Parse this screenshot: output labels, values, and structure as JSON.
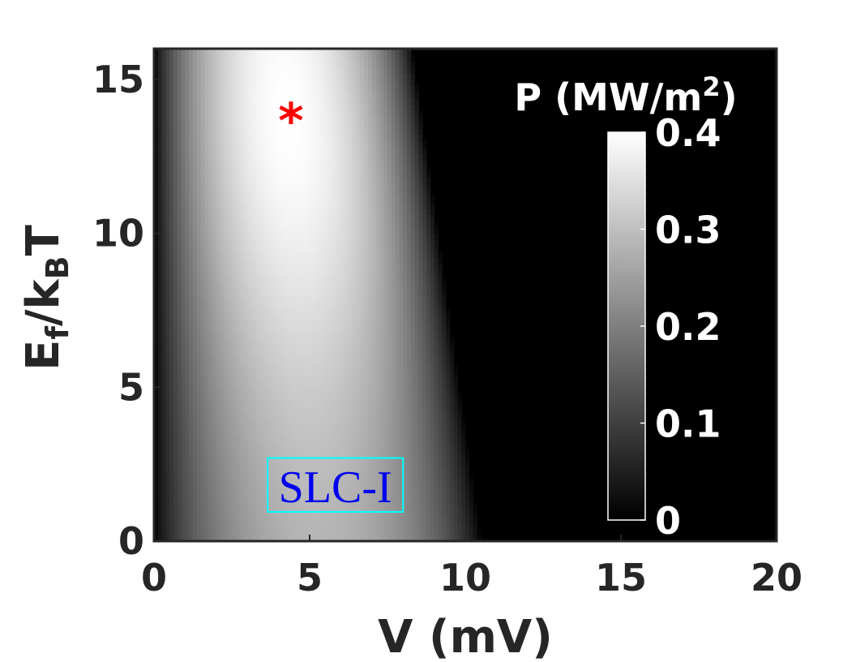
{
  "chart_data": {
    "type": "heatmap",
    "x_var": "V",
    "x_unit": "mV",
    "y_var_base": "E",
    "y_var_sub": "f",
    "y_var_mid": "/k",
    "y_var_sub2": "B",
    "y_var_tail": "T",
    "xlim": [
      0,
      20
    ],
    "ylim": [
      0,
      16
    ],
    "x_ticks": [
      "0",
      "5",
      "10",
      "15",
      "20"
    ],
    "y_ticks": [
      "0",
      "5",
      "10",
      "15"
    ],
    "colorbar": {
      "title_base": "P (MW/m",
      "title_sup": "2",
      "title_end": ")",
      "range": [
        0,
        0.4
      ],
      "ticks": [
        "0",
        "0.1",
        "0.2",
        "0.3",
        "0.4"
      ],
      "colormap": "gray"
    },
    "field": {
      "peak_value": 0.4,
      "description_peak_x": 4.4,
      "description_peak_y": 13.9,
      "v_zero_at_e0": 10.5,
      "v_zero_at_e16": 8.3
    },
    "max_marker": {
      "x": 4.4,
      "y": 13.9,
      "symbol": "*",
      "color": "#ff0000"
    },
    "annotation": {
      "text": "SLC-I",
      "x_range": [
        3.65,
        8.0
      ],
      "y_range": [
        0.95,
        2.7
      ],
      "text_color": "#0000ee",
      "box_color": "#00ffff"
    }
  }
}
